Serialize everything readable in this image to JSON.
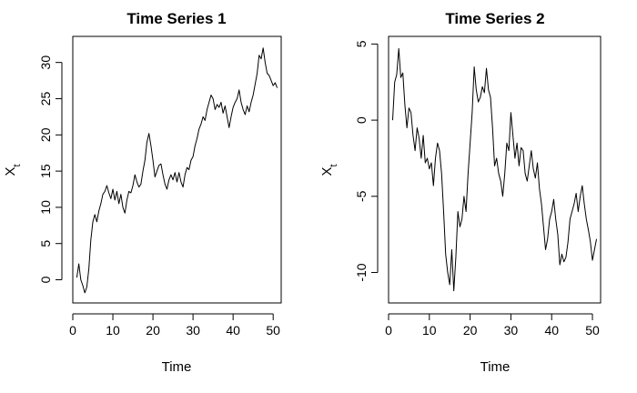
{
  "chart_data": [
    {
      "type": "line",
      "title": "Time Series 1",
      "xlabel": "Time",
      "ylabel": "X",
      "ylabel_subscript": "t",
      "xlim": [
        0,
        52
      ],
      "ylim": [
        -3.2,
        33.6
      ],
      "xticks": [
        0,
        10,
        20,
        30,
        40,
        50
      ],
      "xtick_labels": [
        "0",
        "10",
        "20",
        "30",
        "40",
        "50"
      ],
      "yticks": [
        0,
        5,
        10,
        15,
        20,
        25,
        30
      ],
      "ytick_labels": [
        "0",
        "5",
        "10",
        "15",
        "20",
        "25",
        "30"
      ],
      "grid": false,
      "line_color": "#000000",
      "series": [
        {
          "x": [
            1,
            1.5,
            2,
            2.5,
            3,
            3.5,
            4,
            4.5,
            5,
            5.5,
            6,
            6.5,
            7,
            7.5,
            8,
            8.5,
            9,
            9.5,
            10,
            10.5,
            11,
            11.5,
            12,
            12.5,
            13,
            13.5,
            14,
            14.5,
            15,
            15.5,
            16,
            16.5,
            17,
            17.5,
            18,
            18.5,
            19,
            19.5,
            20,
            20.5,
            21,
            21.5,
            22,
            22.5,
            23,
            23.5,
            24,
            24.5,
            25,
            25.5,
            26,
            26.5,
            27,
            27.5,
            28,
            28.5,
            29,
            29.5,
            30,
            30.5,
            31,
            31.5,
            32,
            32.5,
            33,
            33.5,
            34,
            34.5,
            35,
            35.5,
            36,
            36.5,
            37,
            37.5,
            38,
            38.5,
            39,
            39.5,
            40,
            40.5,
            41,
            41.5,
            42,
            42.5,
            43,
            43.5,
            44,
            44.5,
            45,
            45.5,
            46,
            46.5,
            47,
            47.5,
            48,
            48.5,
            49,
            49.5,
            50,
            50.5,
            51
          ],
          "y": [
            0.3,
            2.2,
            0.0,
            -0.8,
            -1.8,
            -1.0,
            1.5,
            5.5,
            8.0,
            9.0,
            8.0,
            9.5,
            10.5,
            11.8,
            12.2,
            13.0,
            12.0,
            11.2,
            12.5,
            11.0,
            12.2,
            10.5,
            11.8,
            10.0,
            9.2,
            11.0,
            12.2,
            12.0,
            13.0,
            14.5,
            13.5,
            12.8,
            13.2,
            15.0,
            16.5,
            19.0,
            20.2,
            18.5,
            16.5,
            14.2,
            15.0,
            15.8,
            16.0,
            14.5,
            13.2,
            12.5,
            13.8,
            14.5,
            13.8,
            14.8,
            13.5,
            14.8,
            13.5,
            12.8,
            14.5,
            15.5,
            15.2,
            16.5,
            17.0,
            18.5,
            19.5,
            20.8,
            21.5,
            22.5,
            22.0,
            23.5,
            24.5,
            25.5,
            25.0,
            23.5,
            24.2,
            23.8,
            24.5,
            23.0,
            24.0,
            22.5,
            21.0,
            22.5,
            23.8,
            24.5,
            25.0,
            26.2,
            24.5,
            23.5,
            22.8,
            24.0,
            23.2,
            24.5,
            25.5,
            27.0,
            28.5,
            31.0,
            30.5,
            32.0,
            30.0,
            28.5,
            28.2,
            27.5,
            26.8,
            27.2,
            26.5
          ]
        }
      ]
    },
    {
      "type": "line",
      "title": "Time Series 2",
      "xlabel": "Time",
      "ylabel": "X",
      "ylabel_subscript": "t",
      "xlim": [
        0,
        52
      ],
      "ylim": [
        -12,
        5.5
      ],
      "xticks": [
        0,
        10,
        20,
        30,
        40,
        50
      ],
      "xtick_labels": [
        "0",
        "10",
        "20",
        "30",
        "40",
        "50"
      ],
      "yticks": [
        -10,
        -5,
        0,
        5
      ],
      "ytick_labels": [
        "-10",
        "-5",
        "0",
        "5"
      ],
      "grid": false,
      "line_color": "#000000",
      "series": [
        {
          "x": [
            1,
            1.5,
            2,
            2.5,
            3,
            3.5,
            4,
            4.5,
            5,
            5.5,
            6,
            6.5,
            7,
            7.5,
            8,
            8.5,
            9,
            9.5,
            10,
            10.5,
            11,
            11.5,
            12,
            12.5,
            13,
            13.5,
            14,
            14.5,
            15,
            15.5,
            16,
            16.5,
            17,
            17.5,
            18,
            18.5,
            19,
            19.5,
            20,
            20.5,
            21,
            21.5,
            22,
            22.5,
            23,
            23.5,
            24,
            24.5,
            25,
            25.5,
            26,
            26.5,
            27,
            27.5,
            28,
            28.5,
            29,
            29.5,
            30,
            30.5,
            31,
            31.5,
            32,
            32.5,
            33,
            33.5,
            34,
            34.5,
            35,
            35.5,
            36,
            36.5,
            37,
            37.5,
            38,
            38.5,
            39,
            39.5,
            40,
            40.5,
            41,
            41.5,
            42,
            42.5,
            43,
            43.5,
            44,
            44.5,
            45,
            45.5,
            46,
            46.5,
            47,
            47.5,
            48,
            48.5,
            49,
            49.5,
            50,
            50.5,
            51
          ],
          "y": [
            0.0,
            2.5,
            3.0,
            4.7,
            2.8,
            3.1,
            1.0,
            -0.5,
            0.8,
            0.5,
            -1.0,
            -2.0,
            -0.5,
            -1.2,
            -2.5,
            -1.0,
            -2.8,
            -2.5,
            -3.2,
            -2.8,
            -4.3,
            -2.5,
            -1.5,
            -2.0,
            -3.5,
            -6.0,
            -8.8,
            -10.0,
            -10.8,
            -8.5,
            -11.2,
            -9.0,
            -6.0,
            -7.0,
            -6.5,
            -5.0,
            -6.0,
            -3.5,
            -1.5,
            0.5,
            3.5,
            2.0,
            1.2,
            1.5,
            2.2,
            1.8,
            3.4,
            2.0,
            1.5,
            -0.5,
            -3.0,
            -2.5,
            -3.5,
            -4.0,
            -5.0,
            -3.5,
            -1.5,
            -2.0,
            0.5,
            -1.0,
            -2.5,
            -1.5,
            -3.0,
            -1.8,
            -2.0,
            -3.5,
            -4.0,
            -3.0,
            -2.0,
            -3.2,
            -3.8,
            -2.8,
            -4.5,
            -5.5,
            -7.0,
            -8.5,
            -7.8,
            -6.5,
            -6.0,
            -5.2,
            -6.5,
            -7.5,
            -9.5,
            -8.8,
            -9.3,
            -9.0,
            -8.0,
            -6.5,
            -6.0,
            -5.5,
            -4.8,
            -6.0,
            -5.0,
            -4.3,
            -5.5,
            -6.5,
            -7.2,
            -8.0,
            -9.2,
            -8.5,
            -7.8
          ]
        }
      ]
    }
  ]
}
